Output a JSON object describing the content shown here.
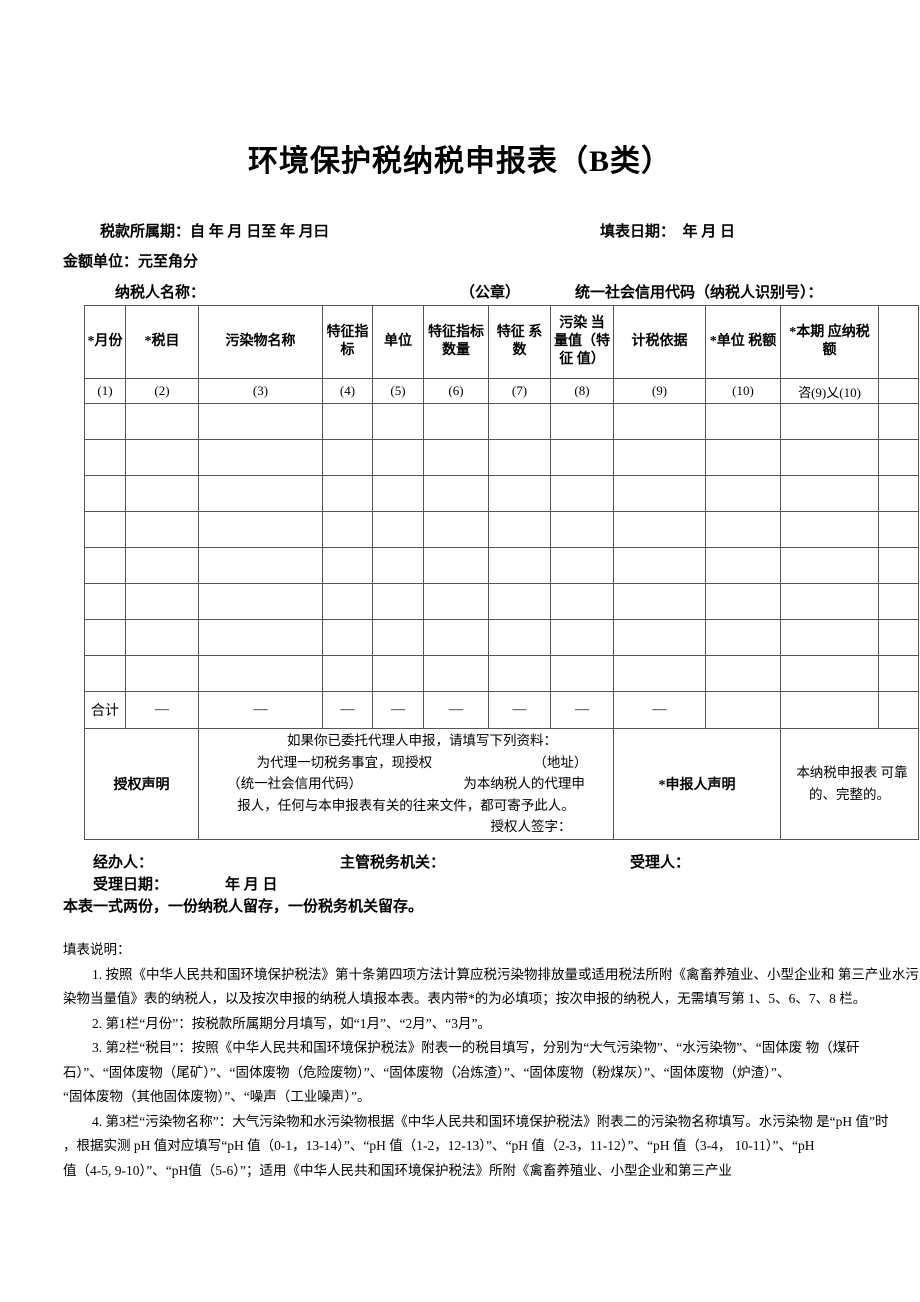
{
  "title": "环境保护税纳税申报表（B类）",
  "meta": {
    "tax_period": "税款所属期：自 年 月 日至 年 月曰",
    "fill_date": "填表日期：　年 月 日",
    "amount_unit": "金额单位：元至角分",
    "taxpayer_name": "纳税人名称：",
    "seal": "（公章）",
    "credit_code": "统一社会信用代码（纳税人识别号）："
  },
  "table": {
    "headers": [
      "*月份",
      "*税目",
      "污染物名称",
      "特征指标",
      "单位",
      "特征指标数量",
      "特征 系数",
      "污染 当量值（特征 值）",
      "计税依据",
      "*单位 税额",
      "*本期 应纳税额"
    ],
    "numbers": [
      "(1)",
      "(2)",
      "(3)",
      "(4)",
      "(5)",
      "(6)",
      "(7)",
      "(8)",
      "(9)",
      "(10)",
      "咨(9)乂(10)"
    ],
    "empty_row_count": 8,
    "total": {
      "label": "合计",
      "dash": "—"
    }
  },
  "authorization": {
    "left_label": "授权声明",
    "line1": "如果你已委托代理人申报，请填写下列资料：",
    "line2": "为代理一切税务事宜，现授权　　　　　　　　（地址）",
    "line3": "（统一社会信用代码）　　　　　　　　为本纳税人的代理申",
    "line4": "报人，任何与本申报表有关的往来文件，都可寄予此人。",
    "line5": "授权人签字：",
    "declarer_label": "*申报人声明",
    "right_line1": "本纳税申报表 可靠",
    "right_line2": "的、完整的。"
  },
  "footer": {
    "operator": "经办人：",
    "authority": "主管税务机关：",
    "receiver": "受理人：",
    "accept_date_label": "受理日期：",
    "accept_date_value": "年 月 日",
    "copies": "本表一式两份，一份纳税人留存，一份税务机关留存。"
  },
  "notes": {
    "heading": "填表说明：",
    "lines": [
      "1. 按照《中华人民共和国环境保护税法》第十条第四项方法计算应税污染物排放量或适用税法所附《禽畜养殖业、小型企业和 第三产业水污",
      "染物当量值》表的纳税人，以及按次申报的纳税人填报本表。表内带*的为必填项；按次申报的纳税人，无需填写第 1、5、6、7、8 栏。",
      "2. 第1栏“月份”：按税款所属期分月填写，如“1月”、“2月”、“3月”。",
      "3. 第2栏“税目”：按照《中华人民共和国环境保护税法》附表一的税目填写，分别为“大气污染物”、“水污染物”、“固体废 物（煤矸",
      "石）”、“固体废物（尾矿）”、“固体废物（危险废物）”、“固体废物（冶炼渣）”、“固体废物（粉煤灰）”、“固体废物（炉渣）”、",
      "“固体废物（其他固体废物）”、“噪声（工业噪声）”。",
      "4. 第3栏“污染物名称”：大气污染物和水污染物根据《中华人民共和国环境保护税法》附表二的污染物名称填写。水污染物 是“pH 值”时",
      "，根据实测 pH 值对应填写“pH 值（0-1，13-14）”、“pH 值（1-2，12-13）”、“pH 值（2-3，11-12）”、“pH 值（3-4， 10-11）”、“pH",
      "值（4-5, 9-10）”、“pH值（5-6）”；适用《中华人民共和国环境保护税法》所附《禽畜养殖业、小型企业和第三产业"
    ]
  }
}
